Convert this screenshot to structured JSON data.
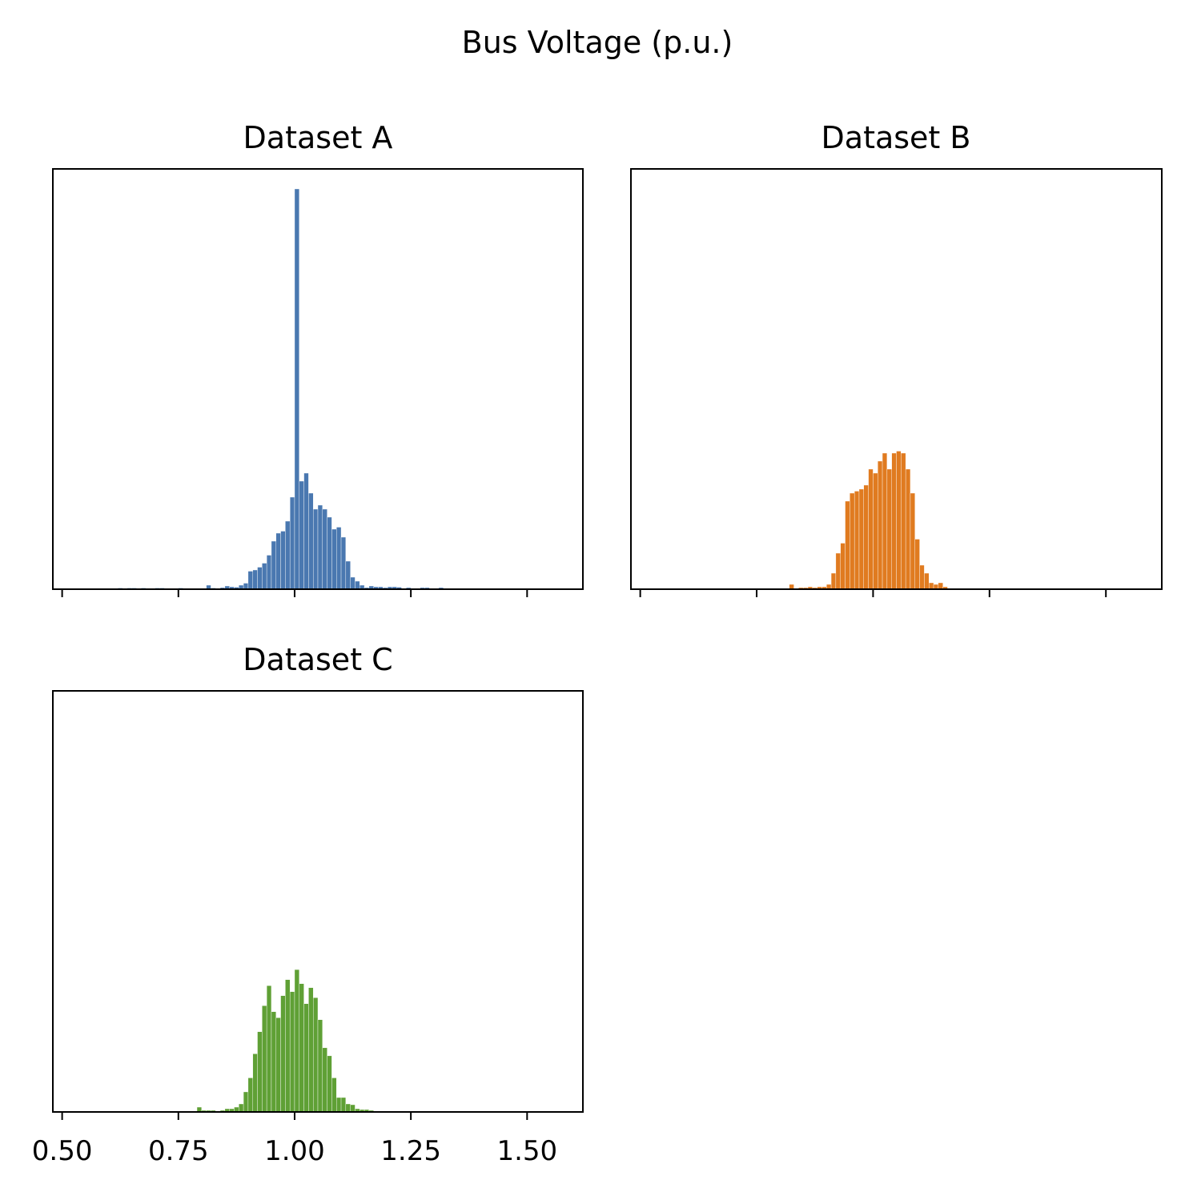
{
  "figure": {
    "suptitle": "Bus Voltage (p.u.)"
  },
  "chart_data": [
    {
      "type": "bar",
      "title": "Dataset A",
      "color": "#4a78b0",
      "xlim": [
        0.48,
        1.62
      ],
      "xticks": [
        0.5,
        0.75,
        1.0,
        1.25,
        1.5
      ],
      "xtick_labels_shown": false,
      "ylim": [
        0,
        1.05
      ],
      "bin_width": 0.01,
      "bins_start": [
        0.62,
        0.64,
        0.65,
        0.67,
        0.7,
        0.71,
        0.75,
        0.81,
        0.82,
        0.84,
        0.85,
        0.86,
        0.87,
        0.88,
        0.89,
        0.9,
        0.91,
        0.92,
        0.93,
        0.94,
        0.95,
        0.96,
        0.97,
        0.98,
        0.99,
        1.0,
        1.01,
        1.02,
        1.03,
        1.04,
        1.05,
        1.06,
        1.07,
        1.08,
        1.09,
        1.1,
        1.11,
        1.12,
        1.13,
        1.14,
        1.15,
        1.16,
        1.17,
        1.18,
        1.19,
        1.2,
        1.21,
        1.22,
        1.24,
        1.27,
        1.28,
        1.31
      ],
      "values": [
        0.003,
        0.003,
        0.003,
        0.003,
        0.003,
        0.003,
        0.003,
        0.01,
        0.003,
        0.004,
        0.008,
        0.006,
        0.005,
        0.01,
        0.015,
        0.045,
        0.048,
        0.055,
        0.065,
        0.085,
        0.12,
        0.14,
        0.145,
        0.17,
        0.23,
        1.0,
        0.27,
        0.29,
        0.24,
        0.2,
        0.21,
        0.2,
        0.18,
        0.15,
        0.155,
        0.13,
        0.07,
        0.03,
        0.02,
        0.01,
        0.004,
        0.008,
        0.006,
        0.006,
        0.004,
        0.006,
        0.006,
        0.005,
        0.004,
        0.004,
        0.004,
        0.004
      ]
    },
    {
      "type": "bar",
      "title": "Dataset B",
      "color": "#e07b20",
      "xlim": [
        0.48,
        1.62
      ],
      "xticks": [
        0.5,
        0.75,
        1.0,
        1.25,
        1.5
      ],
      "xtick_labels_shown": false,
      "ylim": [
        0,
        1.05
      ],
      "bin_width": 0.01,
      "bins_start": [
        0.82,
        0.84,
        0.85,
        0.86,
        0.87,
        0.88,
        0.89,
        0.9,
        0.91,
        0.92,
        0.93,
        0.94,
        0.95,
        0.96,
        0.97,
        0.98,
        0.99,
        1.0,
        1.01,
        1.02,
        1.03,
        1.04,
        1.05,
        1.06,
        1.07,
        1.08,
        1.09,
        1.1,
        1.11,
        1.12,
        1.13,
        1.14,
        1.15
      ],
      "values": [
        0.012,
        0.004,
        0.004,
        0.006,
        0.004,
        0.006,
        0.006,
        0.012,
        0.04,
        0.09,
        0.115,
        0.22,
        0.24,
        0.245,
        0.25,
        0.26,
        0.3,
        0.29,
        0.32,
        0.34,
        0.3,
        0.34,
        0.345,
        0.34,
        0.3,
        0.24,
        0.125,
        0.06,
        0.04,
        0.016,
        0.012,
        0.016,
        0.006
      ]
    },
    {
      "type": "bar",
      "title": "Dataset C",
      "color": "#5fa035",
      "xlim": [
        0.48,
        1.62
      ],
      "xticks": [
        0.5,
        0.75,
        1.0,
        1.25,
        1.5
      ],
      "xtick_labels": [
        "0.50",
        "0.75",
        "1.00",
        "1.25",
        "1.50"
      ],
      "xtick_labels_shown": true,
      "ylim": [
        0,
        1.05
      ],
      "bin_width": 0.01,
      "bins_start": [
        0.79,
        0.8,
        0.81,
        0.82,
        0.84,
        0.85,
        0.86,
        0.87,
        0.88,
        0.89,
        0.9,
        0.91,
        0.92,
        0.93,
        0.94,
        0.95,
        0.96,
        0.97,
        0.98,
        0.99,
        1.0,
        1.01,
        1.02,
        1.03,
        1.04,
        1.05,
        1.06,
        1.07,
        1.08,
        1.09,
        1.1,
        1.11,
        1.12,
        1.13,
        1.14,
        1.15,
        1.16
      ],
      "values": [
        0.012,
        0.004,
        0.004,
        0.004,
        0.004,
        0.008,
        0.008,
        0.012,
        0.02,
        0.05,
        0.085,
        0.145,
        0.2,
        0.265,
        0.315,
        0.25,
        0.235,
        0.29,
        0.33,
        0.3,
        0.355,
        0.32,
        0.27,
        0.31,
        0.285,
        0.23,
        0.16,
        0.14,
        0.085,
        0.036,
        0.036,
        0.02,
        0.018,
        0.008,
        0.006,
        0.006,
        0.004
      ]
    }
  ]
}
